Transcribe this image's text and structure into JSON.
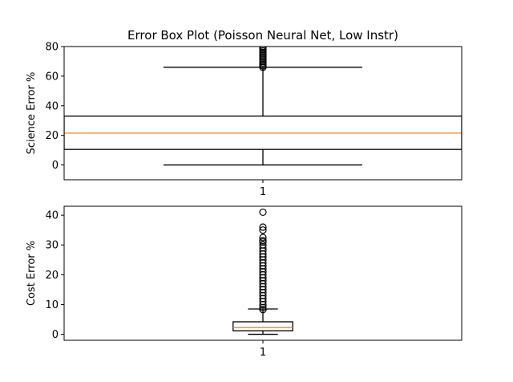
{
  "chart_data": [
    {
      "type": "box",
      "title": "Error Box Plot (Poisson Neural Net, Low Instr)",
      "xlabel": "",
      "ylabel": "Science Error %",
      "categories": [
        "1"
      ],
      "ylim": [
        -10,
        80
      ],
      "yticks": [
        0,
        20,
        40,
        60,
        80
      ],
      "box": {
        "whisker_low": 0,
        "q1": 10.5,
        "median": 21.5,
        "q3": 33,
        "whisker_high": 66
      },
      "outliers": [
        66,
        67,
        68,
        69,
        70,
        71,
        72,
        73,
        74,
        75,
        76,
        77,
        78,
        79,
        80
      ],
      "colors": {
        "box": "#000000",
        "median": "#ff7f0e"
      }
    },
    {
      "type": "box",
      "title": "",
      "xlabel": "",
      "ylabel": "Cost Error %",
      "categories": [
        "1"
      ],
      "ylim": [
        -2,
        43
      ],
      "yticks": [
        0,
        10,
        20,
        30,
        40
      ],
      "box": {
        "whisker_low": 0,
        "q1": 1.2,
        "median": 2.3,
        "q3": 4.2,
        "whisker_high": 8.5
      },
      "outliers": [
        8.3,
        9,
        10,
        11,
        12,
        13,
        14,
        15,
        16,
        17,
        18,
        19,
        20,
        21,
        22,
        23,
        24,
        25,
        26,
        27,
        28,
        29,
        30,
        31,
        31.5,
        32.5,
        35,
        36,
        41
      ],
      "colors": {
        "box": "#000000",
        "median": "#ff7f0e"
      }
    }
  ]
}
